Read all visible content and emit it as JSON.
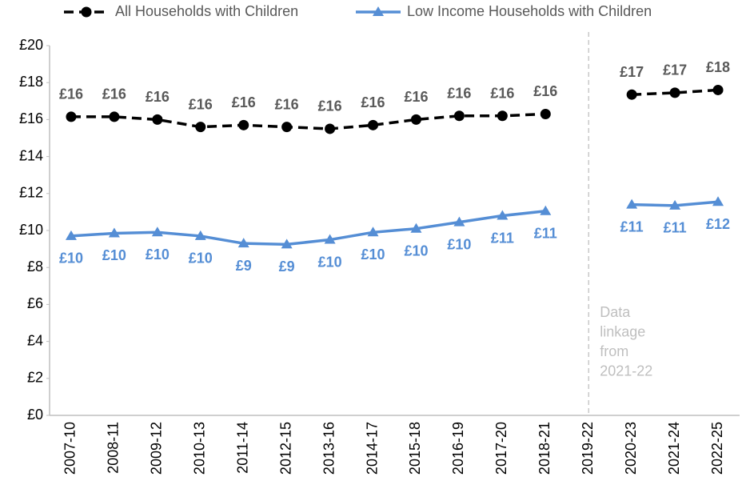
{
  "chart_data": {
    "type": "line",
    "categories": [
      "2007-10",
      "2008-11",
      "2009-12",
      "2010-13",
      "2011-14",
      "2012-15",
      "2013-16",
      "2014-17",
      "2015-18",
      "2016-19",
      "2017-20",
      "2018-21",
      "2019-22",
      "2020-23",
      "2021-24",
      "2022-25"
    ],
    "series": [
      {
        "name": "All Households with Children",
        "color": "#000000",
        "label_color": "#595959",
        "marker": "circle",
        "dashed": true,
        "values": [
          16.15,
          16.15,
          16.0,
          15.6,
          15.7,
          15.6,
          15.5,
          15.7,
          16.0,
          16.2,
          16.2,
          16.3,
          null,
          17.35,
          17.45,
          17.6
        ],
        "value_labels": [
          "£16",
          "£16",
          "£16",
          "£16",
          "£16",
          "£16",
          "£16",
          "£16",
          "£16",
          "£16",
          "£16",
          "£16",
          null,
          "£17",
          "£17",
          "£18"
        ]
      },
      {
        "name": "Low Income Households with Children",
        "color": "#558ed5",
        "label_color": "#558ed5",
        "marker": "triangle",
        "dashed": false,
        "values": [
          9.7,
          9.85,
          9.9,
          9.7,
          9.3,
          9.25,
          9.5,
          9.9,
          10.1,
          10.45,
          10.8,
          11.05,
          null,
          11.4,
          11.35,
          11.55
        ],
        "value_labels": [
          "£10",
          "£10",
          "£10",
          "£10",
          "£9",
          "£9",
          "£10",
          "£10",
          "£10",
          "£10",
          "£11",
          "£11",
          null,
          "£11",
          "£11",
          "£12"
        ]
      }
    ],
    "ylim": [
      0,
      20
    ],
    "yticks": [
      {
        "value": 0,
        "label": "£0"
      },
      {
        "value": 2,
        "label": "£2"
      },
      {
        "value": 4,
        "label": "£4"
      },
      {
        "value": 6,
        "label": "£6"
      },
      {
        "value": 8,
        "label": "£8"
      },
      {
        "value": 10,
        "label": "£10"
      },
      {
        "value": 12,
        "label": "£12"
      },
      {
        "value": 14,
        "label": "£14"
      },
      {
        "value": 16,
        "label": "£16"
      },
      {
        "value": 18,
        "label": "£18"
      },
      {
        "value": 20,
        "label": "£20"
      }
    ],
    "grid": false,
    "annotation": [
      "Data",
      "linkage",
      "from",
      "2021-22"
    ]
  }
}
